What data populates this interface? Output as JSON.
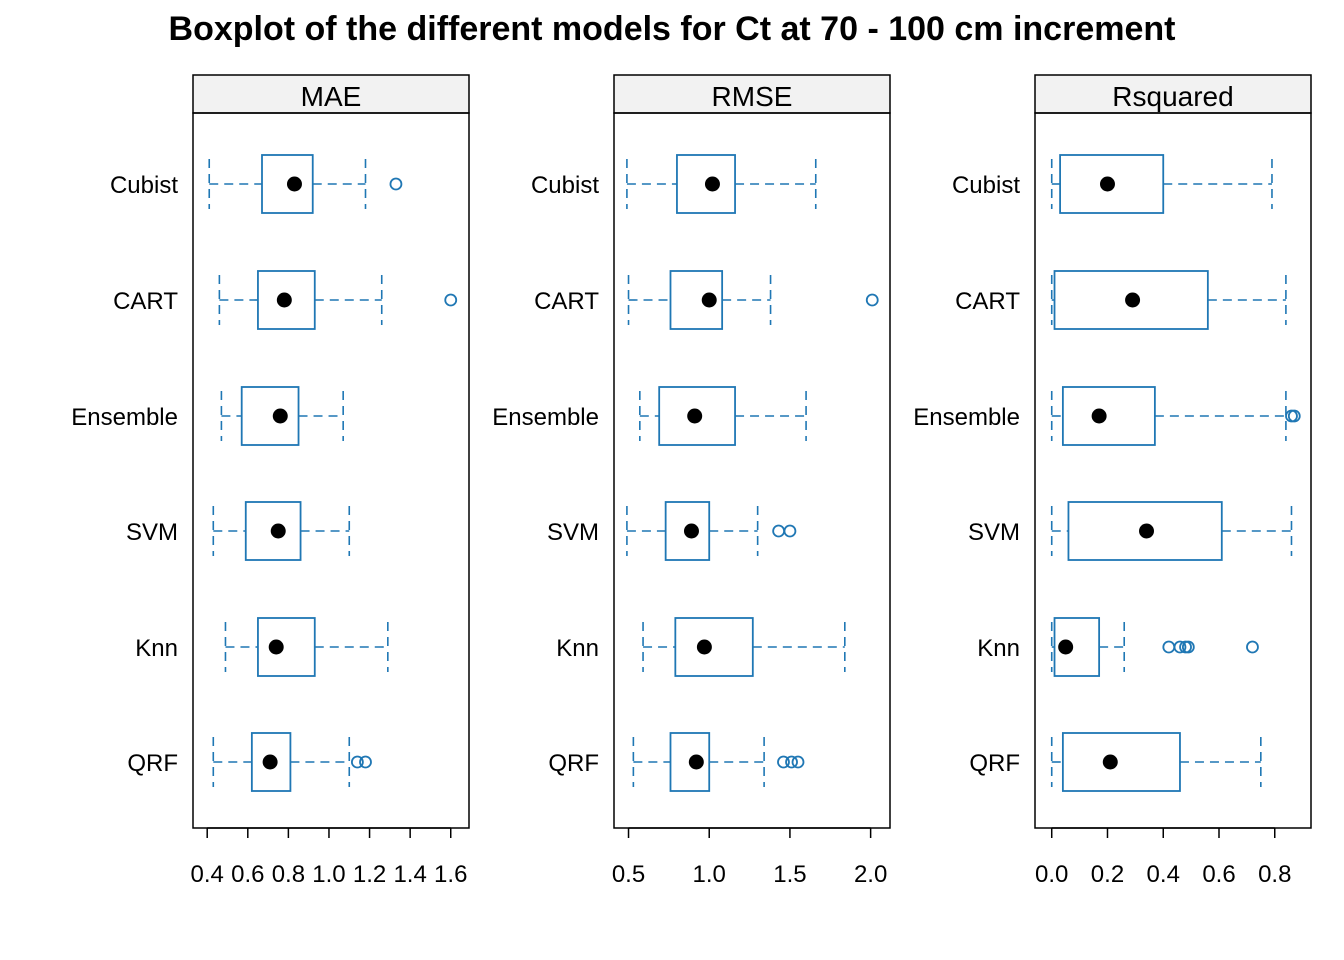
{
  "chart_data": {
    "type": "boxplot",
    "title": "Boxplot of the different models for Ct at 70 - 100 cm increment",
    "orientation": "horizontal",
    "categories": [
      "Cubist",
      "CART",
      "Ensemble",
      "SVM",
      "Knn",
      "QRF"
    ],
    "box_color": "#1f77b4",
    "median_marker_color": "#000000",
    "panel_header_color": "#f2f2f2",
    "panels": [
      {
        "name": "MAE",
        "xlim": [
          0.33,
          1.69
        ],
        "ticks": [
          0.4,
          0.6,
          0.8,
          1.0,
          1.2,
          1.4,
          1.6
        ],
        "tick_labels": [
          "0.4",
          "0.6",
          "0.8",
          "1.0",
          "1.2",
          "1.4",
          "1.6"
        ],
        "boxes": [
          {
            "model": "Cubist",
            "whisker_low": 0.41,
            "q1": 0.67,
            "median": 0.83,
            "q3": 0.92,
            "whisker_high": 1.18,
            "outliers": [
              1.33
            ]
          },
          {
            "model": "CART",
            "whisker_low": 0.46,
            "q1": 0.65,
            "median": 0.78,
            "q3": 0.93,
            "whisker_high": 1.26,
            "outliers": [
              1.6
            ]
          },
          {
            "model": "Ensemble",
            "whisker_low": 0.47,
            "q1": 0.57,
            "median": 0.76,
            "q3": 0.85,
            "whisker_high": 1.07,
            "outliers": []
          },
          {
            "model": "SVM",
            "whisker_low": 0.43,
            "q1": 0.59,
            "median": 0.75,
            "q3": 0.86,
            "whisker_high": 1.1,
            "outliers": []
          },
          {
            "model": "Knn",
            "whisker_low": 0.49,
            "q1": 0.65,
            "median": 0.74,
            "q3": 0.93,
            "whisker_high": 1.29,
            "outliers": []
          },
          {
            "model": "QRF",
            "whisker_low": 0.43,
            "q1": 0.62,
            "median": 0.71,
            "q3": 0.81,
            "whisker_high": 1.1,
            "outliers": [
              1.14,
              1.18
            ]
          }
        ]
      },
      {
        "name": "RMSE",
        "xlim": [
          0.41,
          2.12
        ],
        "ticks": [
          0.5,
          1.0,
          1.5,
          2.0
        ],
        "tick_labels": [
          "0.5",
          "1.0",
          "1.5",
          "2.0"
        ],
        "boxes": [
          {
            "model": "Cubist",
            "whisker_low": 0.49,
            "q1": 0.8,
            "median": 1.02,
            "q3": 1.16,
            "whisker_high": 1.66,
            "outliers": []
          },
          {
            "model": "CART",
            "whisker_low": 0.5,
            "q1": 0.76,
            "median": 1.0,
            "q3": 1.08,
            "whisker_high": 1.38,
            "outliers": [
              2.01
            ]
          },
          {
            "model": "Ensemble",
            "whisker_low": 0.57,
            "q1": 0.69,
            "median": 0.91,
            "q3": 1.16,
            "whisker_high": 1.6,
            "outliers": []
          },
          {
            "model": "SVM",
            "whisker_low": 0.49,
            "q1": 0.73,
            "median": 0.89,
            "q3": 1.0,
            "whisker_high": 1.3,
            "outliers": [
              1.43,
              1.5
            ]
          },
          {
            "model": "Knn",
            "whisker_low": 0.59,
            "q1": 0.79,
            "median": 0.97,
            "q3": 1.27,
            "whisker_high": 1.84,
            "outliers": []
          },
          {
            "model": "QRF",
            "whisker_low": 0.53,
            "q1": 0.76,
            "median": 0.92,
            "q3": 1.0,
            "whisker_high": 1.34,
            "outliers": [
              1.46,
              1.51,
              1.55
            ]
          }
        ]
      },
      {
        "name": "Rsquared",
        "xlim": [
          -0.06,
          0.93
        ],
        "ticks": [
          0.0,
          0.2,
          0.4,
          0.6,
          0.8
        ],
        "tick_labels": [
          "0.0",
          "0.2",
          "0.4",
          "0.6",
          "0.8"
        ],
        "boxes": [
          {
            "model": "Cubist",
            "whisker_low": 0.0,
            "q1": 0.03,
            "median": 0.2,
            "q3": 0.4,
            "whisker_high": 0.79,
            "outliers": []
          },
          {
            "model": "CART",
            "whisker_low": 0.0,
            "q1": 0.01,
            "median": 0.29,
            "q3": 0.56,
            "whisker_high": 0.84,
            "outliers": []
          },
          {
            "model": "Ensemble",
            "whisker_low": 0.0,
            "q1": 0.04,
            "median": 0.17,
            "q3": 0.37,
            "whisker_high": 0.84,
            "outliers": [
              0.86,
              0.87
            ]
          },
          {
            "model": "SVM",
            "whisker_low": 0.0,
            "q1": 0.06,
            "median": 0.34,
            "q3": 0.61,
            "whisker_high": 0.86,
            "outliers": []
          },
          {
            "model": "Knn",
            "whisker_low": 0.0,
            "q1": 0.01,
            "median": 0.05,
            "q3": 0.17,
            "whisker_high": 0.26,
            "outliers": [
              0.42,
              0.46,
              0.48,
              0.49,
              0.72
            ]
          },
          {
            "model": "QRF",
            "whisker_low": 0.0,
            "q1": 0.04,
            "median": 0.21,
            "q3": 0.46,
            "whisker_high": 0.75,
            "outliers": []
          }
        ]
      }
    ]
  }
}
